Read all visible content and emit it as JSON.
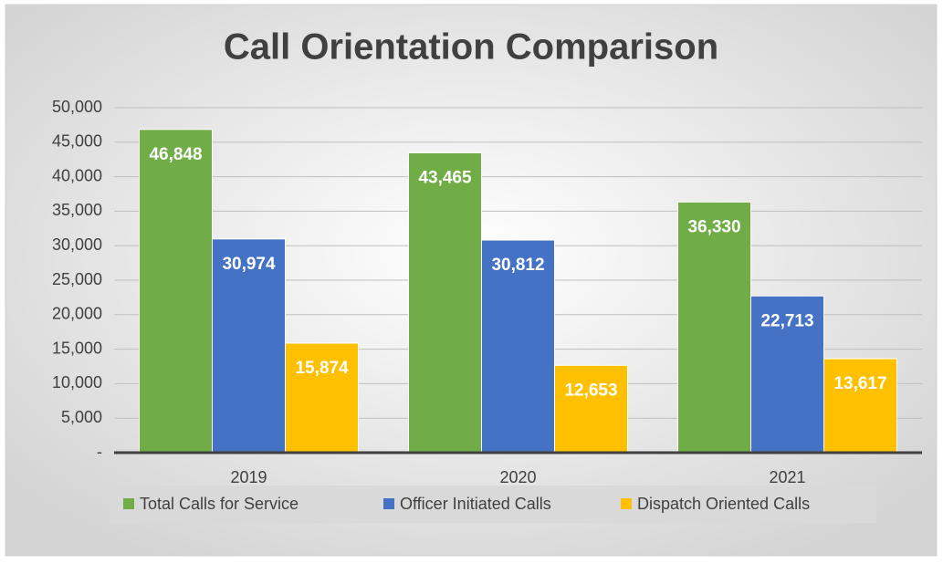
{
  "chart_data": {
    "type": "bar",
    "title": "Call Orientation Comparison",
    "categories": [
      "2019",
      "2020",
      "2021"
    ],
    "series": [
      {
        "name": "Total Calls for Service",
        "color": "#70ad47",
        "values": [
          46848,
          43465,
          36330
        ],
        "value_labels": [
          "46,848",
          "43,465",
          "36,330"
        ]
      },
      {
        "name": "Officer Initiated Calls",
        "color": "#4472c4",
        "values": [
          30974,
          30812,
          22713
        ],
        "value_labels": [
          "30,974",
          "30,812",
          "22,713"
        ]
      },
      {
        "name": "Dispatch Oriented Calls",
        "color": "#ffc000",
        "values": [
          15874,
          12653,
          13617
        ],
        "value_labels": [
          "15,874",
          "12,653",
          "13,617"
        ]
      }
    ],
    "ylim": [
      0,
      50000
    ],
    "yticks": [
      {
        "value": 0,
        "label": "-"
      },
      {
        "value": 5000,
        "label": "5,000"
      },
      {
        "value": 10000,
        "label": "10,000"
      },
      {
        "value": 15000,
        "label": "15,000"
      },
      {
        "value": 20000,
        "label": "20,000"
      },
      {
        "value": 25000,
        "label": "25,000"
      },
      {
        "value": 30000,
        "label": "30,000"
      },
      {
        "value": 35000,
        "label": "35,000"
      },
      {
        "value": 40000,
        "label": "40,000"
      },
      {
        "value": 45000,
        "label": "45,000"
      },
      {
        "value": 50000,
        "label": "50,000"
      }
    ],
    "grid": true,
    "legend": "bottom"
  }
}
